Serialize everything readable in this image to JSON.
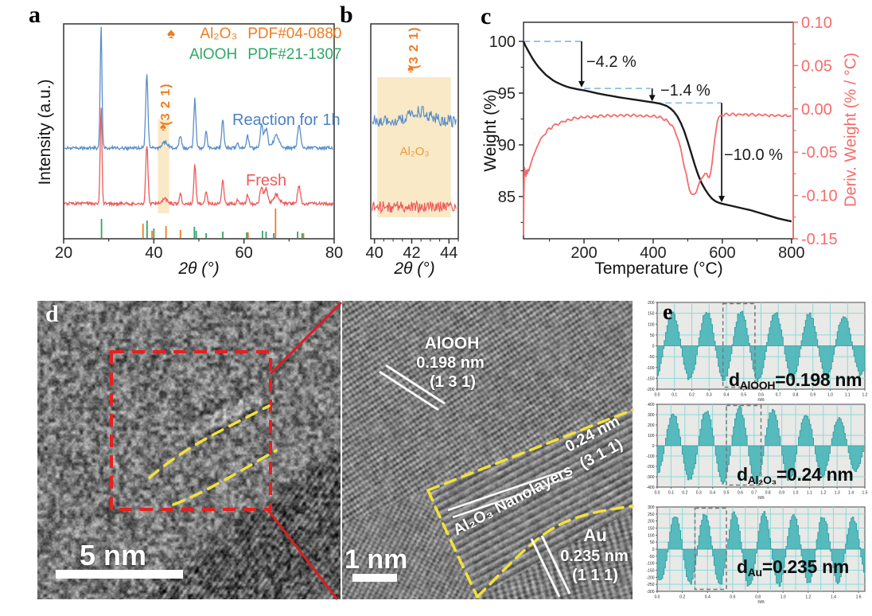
{
  "panels": {
    "a": {
      "letter": "a",
      "legend": [
        {
          "marker": "♠",
          "name": "Al₂O₃",
          "pdf": "PDF#04-0880",
          "color": "#EE7D23"
        },
        {
          "marker": "",
          "name": "AlOOH",
          "pdf": "PDF#21-1307",
          "color": "#2FA866"
        }
      ],
      "ylabel": "Intensity (a.u.)",
      "xlabel": "2θ (°)",
      "curve_label_top": "Reaction for 1h",
      "curve_label_bottom": "Fresh",
      "peak_marker": "♠",
      "peak_hkl": "(3 2 1)"
    },
    "b": {
      "letter": "b",
      "xlabel": "2θ (°)",
      "peak_marker": "♠",
      "peak_hkl": "(3 2 1)",
      "band_label": "Al₂O₃"
    },
    "c": {
      "letter": "c",
      "xlabel": "Temperature (°C)",
      "ylabel_left": "Weight (%)",
      "ylabel_right": "Deriv. Weight (% / °C)",
      "loss_labels": [
        "−4.2 %",
        "−1.4 %",
        "−10.0 %"
      ]
    },
    "d": {
      "letter": "d",
      "scalebar_left": "5 nm",
      "scalebar_right": "1 nm",
      "alooh": [
        "AlOOH",
        "0.198 nm",
        "(1 3 1)"
      ],
      "al2o3_spacing": "0.24 nm",
      "al2o3_hkl": "(3 1 1)",
      "al2o3_name": "Al₂O₃ Nanolayers",
      "au": [
        "Au",
        "0.235 nm",
        "(1 1 1)"
      ]
    },
    "e": {
      "letter": "e",
      "labels": [
        {
          "pre": "d",
          "sub": "AlOOH",
          "rest": "=0.198 nm"
        },
        {
          "pre": "d",
          "sub": "Al₂O₃",
          "rest": "=0.24 nm"
        },
        {
          "pre": "d",
          "sub": "Au",
          "rest": "=0.235 nm"
        }
      ]
    }
  },
  "chart_data": [
    {
      "id": "xrd_full",
      "type": "line",
      "xlabel": "2θ (°)",
      "ylabel": "Intensity (a.u.)",
      "x_range": [
        20,
        80
      ],
      "x_ticks": [
        20,
        40,
        60,
        80
      ],
      "x_minor": [
        30,
        50,
        70
      ],
      "highlight_band": [
        40.9,
        43.4
      ],
      "band_color": "#F7DFAE",
      "annotation": {
        "marker": "♠",
        "text": "(3 2 1)",
        "x": 42.3
      },
      "series": [
        {
          "name": "Reaction for 1h",
          "color": "#5B8EC9",
          "peaks": [
            [
              28.3,
              1.0,
              0.28
            ],
            [
              38.45,
              0.62,
              0.35
            ],
            [
              42.5,
              0.05,
              0.8
            ],
            [
              45.9,
              0.11,
              0.35
            ],
            [
              49.1,
              0.4,
              0.33
            ],
            [
              51.6,
              0.14,
              0.3
            ],
            [
              55.3,
              0.24,
              0.35
            ],
            [
              58.6,
              0.05,
              0.3
            ],
            [
              60.8,
              0.1,
              0.35
            ],
            [
              63.9,
              0.18,
              0.45
            ],
            [
              64.9,
              0.16,
              0.5
            ],
            [
              67.2,
              0.1,
              0.9
            ],
            [
              72.2,
              0.19,
              0.45
            ]
          ]
        },
        {
          "name": "Fresh",
          "color": "#EE5A5A",
          "peaks": [
            [
              28.3,
              1.0,
              0.28
            ],
            [
              38.45,
              0.62,
              0.35
            ],
            [
              42.5,
              0.05,
              0.8
            ],
            [
              45.9,
              0.11,
              0.35
            ],
            [
              49.1,
              0.4,
              0.33
            ],
            [
              51.6,
              0.14,
              0.3
            ],
            [
              55.3,
              0.24,
              0.35
            ],
            [
              58.6,
              0.05,
              0.3
            ],
            [
              60.8,
              0.1,
              0.35
            ],
            [
              63.9,
              0.18,
              0.45
            ],
            [
              64.9,
              0.16,
              0.5
            ],
            [
              67.2,
              0.1,
              0.9
            ],
            [
              72.2,
              0.19,
              0.45
            ]
          ]
        }
      ],
      "reference_sticks": [
        {
          "name": "AlOOH PDF#21-1307",
          "color": "#2FA866",
          "lines": [
            [
              28.4,
              24
            ],
            [
              38.5,
              22
            ],
            [
              40.0,
              12
            ],
            [
              49.0,
              14
            ],
            [
              49.4,
              9
            ],
            [
              51.6,
              6
            ],
            [
              55.3,
              8
            ],
            [
              60.6,
              7
            ],
            [
              64.1,
              9
            ],
            [
              64.9,
              8
            ],
            [
              66.6,
              6
            ],
            [
              71.9,
              8
            ],
            [
              72.9,
              6
            ]
          ]
        },
        {
          "name": "Al₂O₃ PDF#04-0880",
          "color": "#EE7D23",
          "lines": [
            [
              37.6,
              18
            ],
            [
              39.6,
              9
            ],
            [
              42.7,
              15
            ],
            [
              45.9,
              10
            ],
            [
              60.9,
              7
            ],
            [
              67.0,
              37
            ],
            [
              73.2,
              6
            ]
          ]
        }
      ]
    },
    {
      "id": "xrd_zoom",
      "type": "line",
      "xlabel": "2θ (°)",
      "x_range": [
        39.8,
        44.5
      ],
      "x_ticks": [
        40,
        42,
        44
      ],
      "band": [
        40.15,
        44.1
      ],
      "band_label": "Al₂O₃",
      "band_color": "#F7DFAE",
      "bump": {
        "x": 42.4,
        "w": 0.75
      },
      "annotation": {
        "marker": "♠",
        "text": "(3 2 1)",
        "x": 42.15
      },
      "series": [
        {
          "name": "Reaction for 1h",
          "color": "#5B8EC9"
        },
        {
          "name": "Fresh",
          "color": "#EE5A5A"
        }
      ]
    },
    {
      "id": "tga",
      "type": "line",
      "xlabel": "Temperature (°C)",
      "x_range": [
        25,
        805
      ],
      "x_ticks": [
        200,
        400,
        600,
        800
      ],
      "x_minor": [
        100,
        300,
        500,
        700
      ],
      "left_axis": {
        "label": "Weight (%)",
        "ticks": [
          85,
          90,
          95,
          100
        ],
        "minor": [
          82.5,
          87.5,
          92.5,
          97.5
        ]
      },
      "right_axis": {
        "label": "Deriv. Weight (% / °C)",
        "ticks": [
          0.1,
          0.05,
          0.0,
          -0.05,
          -0.1,
          -0.15
        ],
        "color": "#F76B6B"
      },
      "dash_color": "#8FBCE8",
      "weight_series": {
        "name": "Weight",
        "color": "#1a1a1a",
        "points": [
          [
            25,
            100
          ],
          [
            30,
            99.6
          ],
          [
            40,
            99.0
          ],
          [
            50,
            98.4
          ],
          [
            60,
            97.9
          ],
          [
            70,
            97.45
          ],
          [
            80,
            97.1
          ],
          [
            90,
            96.75
          ],
          [
            100,
            96.5
          ],
          [
            110,
            96.25
          ],
          [
            120,
            96.05
          ],
          [
            130,
            95.9
          ],
          [
            140,
            95.75
          ],
          [
            150,
            95.62
          ],
          [
            160,
            95.52
          ],
          [
            170,
            95.45
          ],
          [
            180,
            95.38
          ],
          [
            190,
            95.32
          ],
          [
            200,
            95.27
          ],
          [
            220,
            95.12
          ],
          [
            240,
            94.97
          ],
          [
            260,
            94.84
          ],
          [
            280,
            94.72
          ],
          [
            300,
            94.6
          ],
          [
            320,
            94.5
          ],
          [
            340,
            94.4
          ],
          [
            360,
            94.3
          ],
          [
            380,
            94.2
          ],
          [
            400,
            94.1
          ],
          [
            410,
            94.05
          ],
          [
            420,
            93.98
          ],
          [
            430,
            93.88
          ],
          [
            440,
            93.74
          ],
          [
            450,
            93.52
          ],
          [
            460,
            93.2
          ],
          [
            470,
            92.75
          ],
          [
            480,
            92.1
          ],
          [
            490,
            91.3
          ],
          [
            500,
            90.3
          ],
          [
            510,
            89.2
          ],
          [
            520,
            88.1
          ],
          [
            530,
            87.1
          ],
          [
            540,
            86.3
          ],
          [
            550,
            85.7
          ],
          [
            560,
            85.2
          ],
          [
            570,
            84.8
          ],
          [
            580,
            84.55
          ],
          [
            590,
            84.4
          ],
          [
            600,
            84.3
          ],
          [
            620,
            84.15
          ],
          [
            640,
            84.0
          ],
          [
            660,
            83.85
          ],
          [
            680,
            83.7
          ],
          [
            700,
            83.5
          ],
          [
            720,
            83.3
          ],
          [
            740,
            83.1
          ],
          [
            760,
            82.9
          ],
          [
            780,
            82.75
          ],
          [
            800,
            82.6
          ]
        ]
      },
      "deriv_series": {
        "name": "Deriv. Weight",
        "color": "#F76B6B",
        "points": [
          [
            25,
            -0.146
          ],
          [
            26,
            -0.105
          ],
          [
            27,
            -0.078
          ],
          [
            28,
            -0.068
          ],
          [
            30,
            -0.074
          ],
          [
            32,
            -0.078
          ],
          [
            34,
            -0.071
          ],
          [
            36,
            -0.075
          ],
          [
            38,
            -0.07
          ],
          [
            40,
            -0.072
          ],
          [
            44,
            -0.066
          ],
          [
            48,
            -0.061
          ],
          [
            52,
            -0.056
          ],
          [
            56,
            -0.052
          ],
          [
            60,
            -0.048
          ],
          [
            65,
            -0.043
          ],
          [
            70,
            -0.039
          ],
          [
            75,
            -0.035
          ],
          [
            80,
            -0.032
          ],
          [
            90,
            -0.027
          ],
          [
            100,
            -0.023
          ],
          [
            110,
            -0.02
          ],
          [
            120,
            -0.018
          ],
          [
            130,
            -0.016
          ],
          [
            140,
            -0.0145
          ],
          [
            150,
            -0.013
          ],
          [
            160,
            -0.012
          ],
          [
            170,
            -0.011
          ],
          [
            180,
            -0.0105
          ],
          [
            200,
            -0.0095
          ],
          [
            220,
            -0.009
          ],
          [
            240,
            -0.0085
          ],
          [
            260,
            -0.008
          ],
          [
            280,
            -0.0078
          ],
          [
            300,
            -0.0076
          ],
          [
            320,
            -0.0075
          ],
          [
            340,
            -0.0074
          ],
          [
            360,
            -0.0076
          ],
          [
            380,
            -0.008
          ],
          [
            400,
            -0.0085
          ],
          [
            410,
            -0.009
          ],
          [
            420,
            -0.01
          ],
          [
            430,
            -0.0115
          ],
          [
            440,
            -0.0135
          ],
          [
            450,
            -0.017
          ],
          [
            460,
            -0.023
          ],
          [
            470,
            -0.032
          ],
          [
            480,
            -0.047
          ],
          [
            490,
            -0.066
          ],
          [
            500,
            -0.085
          ],
          [
            505,
            -0.093
          ],
          [
            510,
            -0.098
          ],
          [
            515,
            -0.1
          ],
          [
            520,
            -0.098
          ],
          [
            525,
            -0.094
          ],
          [
            530,
            -0.089
          ],
          [
            535,
            -0.084
          ],
          [
            540,
            -0.08
          ],
          [
            545,
            -0.077
          ],
          [
            550,
            -0.0755
          ],
          [
            555,
            -0.076
          ],
          [
            558,
            -0.0775
          ],
          [
            562,
            -0.078
          ],
          [
            566,
            -0.074
          ],
          [
            570,
            -0.064
          ],
          [
            574,
            -0.05
          ],
          [
            578,
            -0.035
          ],
          [
            582,
            -0.022
          ],
          [
            586,
            -0.014
          ],
          [
            590,
            -0.01
          ],
          [
            595,
            -0.008
          ],
          [
            600,
            -0.007
          ],
          [
            620,
            -0.0065
          ],
          [
            640,
            -0.0065
          ],
          [
            660,
            -0.0065
          ],
          [
            680,
            -0.007
          ],
          [
            700,
            -0.007
          ],
          [
            720,
            -0.0072
          ],
          [
            740,
            -0.0075
          ],
          [
            760,
            -0.0078
          ],
          [
            800,
            -0.008
          ]
        ]
      },
      "steps": [
        {
          "label": "−4.2 %",
          "plateau": 100,
          "from_T": 25,
          "to_T": 193,
          "arrow_T": 193,
          "drop_to": 95.55
        },
        {
          "label": "−1.4 %",
          "plateau": 95.45,
          "from_T": 200,
          "to_T": 392,
          "arrow_T": 397,
          "drop_to": 94.2
        },
        {
          "label": "−10.0 %",
          "plateau": 94.05,
          "from_T": 405,
          "to_T": 598,
          "arrow_T": 598,
          "drop_to": 84.45
        }
      ]
    },
    {
      "id": "profile_alooh",
      "type": "area",
      "xlabel": "nm",
      "label_text": "d_AlOOH=0.198 nm",
      "period_nm": 0.198,
      "x_max": 1.2,
      "x0": 0.035,
      "xtick_step": 0.1,
      "grid_step": 0.1,
      "ylim": [
        -200,
        200
      ],
      "ytick_step": 50,
      "amp": 158,
      "mod": [
        2.0,
        0.7,
        0.18,
        0.82
      ],
      "box": [
        0.38,
        0.565
      ]
    },
    {
      "id": "profile_al2o3",
      "type": "area",
      "xlabel": "nm",
      "label_text": "d_Al₂O₃=0.24 nm",
      "period_nm": 0.24,
      "x_max": 1.5,
      "x0": 0.05,
      "xtick_step": 0.1,
      "grid_step": 0.1,
      "ylim": [
        -400,
        400
      ],
      "ytick_step": 100,
      "amp": 360,
      "mod": [
        2.6,
        0.0,
        0.22,
        0.78
      ],
      "box": [
        0.5,
        0.75
      ]
    },
    {
      "id": "profile_au",
      "type": "area",
      "xlabel": "nm",
      "label_text": "d_Au=0.235 nm",
      "period_nm": 0.235,
      "x_max": 1.65,
      "x0": 0.08,
      "xtick_step": 0.2,
      "grid_step": 0.1,
      "ylim": [
        -300,
        300
      ],
      "ytick_step": 50,
      "amp": 258,
      "mod": [
        1.8,
        0.3,
        0.15,
        0.85
      ],
      "box": [
        0.3,
        0.55
      ]
    }
  ],
  "style_colors": {
    "teal_fill": "#4FB7BA",
    "teal_stroke": "#2E9A9E",
    "profile_bg": "#E9E9E7",
    "profile_grid": "#8ADADA",
    "red_marker": "#E62020",
    "yellow_dash": "#F3E23A"
  }
}
